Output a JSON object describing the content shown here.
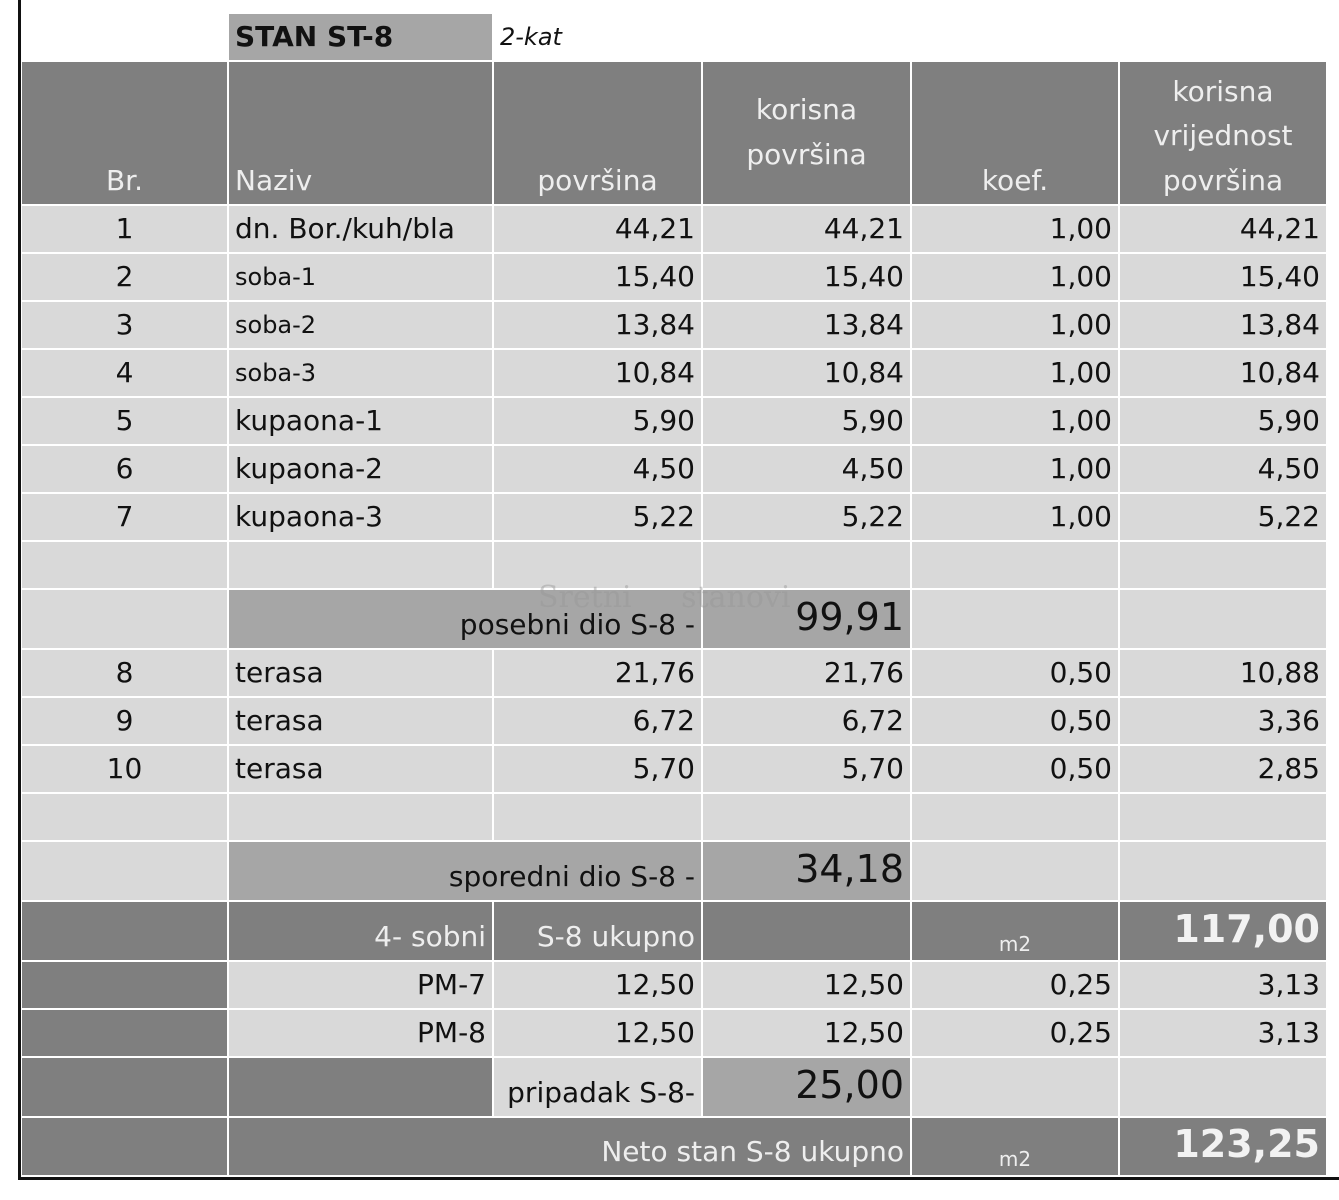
{
  "header": {
    "title": "STAN ST-8",
    "floor": "2-kat"
  },
  "columns": [
    "Br.",
    "Naziv",
    "površina",
    "korisna površina",
    "koef.",
    "korisna vrijednost površina"
  ],
  "rows": [
    [
      "1",
      "dn. Bor./kuh/bla",
      "44,21",
      "44,21",
      "1,00",
      "44,21"
    ],
    [
      "2",
      "soba-1",
      "15,40",
      "15,40",
      "1,00",
      "15,40"
    ],
    [
      "3",
      "soba-2",
      "13,84",
      "13,84",
      "1,00",
      "13,84"
    ],
    [
      "4",
      "soba-3",
      "10,84",
      "10,84",
      "1,00",
      "10,84"
    ],
    [
      "5",
      "kupaona-1",
      "5,90",
      "5,90",
      "1,00",
      "5,90"
    ],
    [
      "6",
      "kupaona-2",
      "4,50",
      "4,50",
      "1,00",
      "4,50"
    ],
    [
      "7",
      "kupaona-3",
      "5,22",
      "5,22",
      "1,00",
      "5,22"
    ]
  ],
  "subtotal_main": {
    "label": "posebni dio S-8 -",
    "value": "99,91"
  },
  "terraces": [
    [
      "8",
      "terasa",
      "21,76",
      "21,76",
      "0,50",
      "10,88"
    ],
    [
      "9",
      "terasa",
      "6,72",
      "6,72",
      "0,50",
      "3,36"
    ],
    [
      "10",
      "terasa",
      "5,70",
      "5,70",
      "0,50",
      "2,85"
    ]
  ],
  "subtotal_side": {
    "label": "sporedni dio S-8 -",
    "value": "34,18"
  },
  "total": {
    "rooms": "4- sobni",
    "label": "S-8 ukupno",
    "unit": "m2",
    "value": "117,00"
  },
  "parking": [
    [
      "PM-7",
      "12,50",
      "12,50",
      "0,25",
      "3,13"
    ],
    [
      "PM-8",
      "12,50",
      "12,50",
      "0,25",
      "3,13"
    ]
  ],
  "subtotal_parking": {
    "label": "pripadak S-8-",
    "value": "25,00"
  },
  "net_total": {
    "label": "Neto stan S-8 ukupno",
    "unit": "m2",
    "value": "123,25"
  },
  "watermark": "Sretni stanovi"
}
